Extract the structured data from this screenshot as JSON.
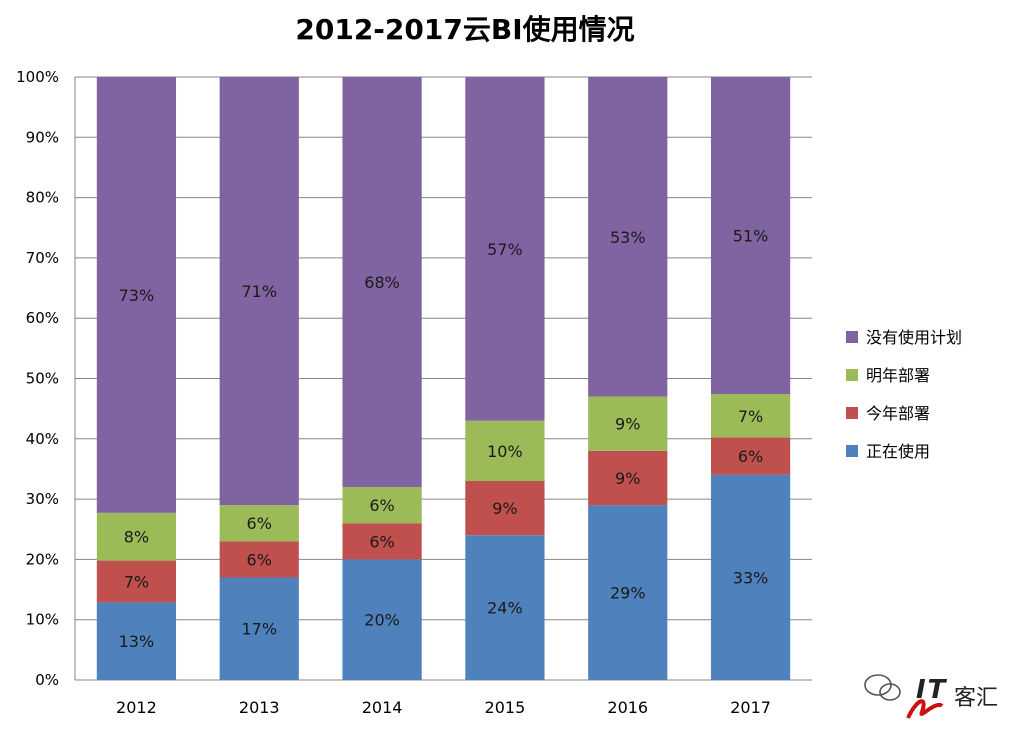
{
  "chart_data": {
    "type": "bar",
    "stacked": true,
    "percent": true,
    "title": "2012-2017云BI使用情况",
    "xlabel": "",
    "ylabel": "",
    "ylim": [
      0,
      100
    ],
    "yticks": [
      "0%",
      "10%",
      "20%",
      "30%",
      "40%",
      "50%",
      "60%",
      "70%",
      "80%",
      "90%",
      "100%"
    ],
    "grid": true,
    "legend_position": "right",
    "categories": [
      "2012",
      "2013",
      "2014",
      "2015",
      "2016",
      "2017"
    ],
    "series": [
      {
        "name": "正在使用",
        "color": "#4F81BD",
        "values": [
          13,
          17,
          20,
          24,
          29,
          33
        ],
        "labels": [
          "13%",
          "17%",
          "20%",
          "24%",
          "29%",
          "33%"
        ]
      },
      {
        "name": "今年部署",
        "color": "#C0504D",
        "values": [
          7,
          6,
          6,
          9,
          9,
          6
        ],
        "labels": [
          "7%",
          "6%",
          "6%",
          "9%",
          "9%",
          "6%"
        ]
      },
      {
        "name": "明年部署",
        "color": "#9BBB59",
        "values": [
          8,
          6,
          6,
          10,
          9,
          7
        ],
        "labels": [
          "8%",
          "6%",
          "6%",
          "10%",
          "9%",
          "7%"
        ]
      },
      {
        "name": "没有使用计划",
        "color": "#8064A2",
        "values": [
          73,
          71,
          68,
          57,
          53,
          51
        ],
        "labels": [
          "73%",
          "71%",
          "68%",
          "57%",
          "53%",
          "51%"
        ]
      }
    ],
    "legend_order": [
      "没有使用计划",
      "明年部署",
      "今年部署",
      "正在使用"
    ]
  },
  "watermark": {
    "text": "IT客汇",
    "icon": "wechat-icon"
  }
}
